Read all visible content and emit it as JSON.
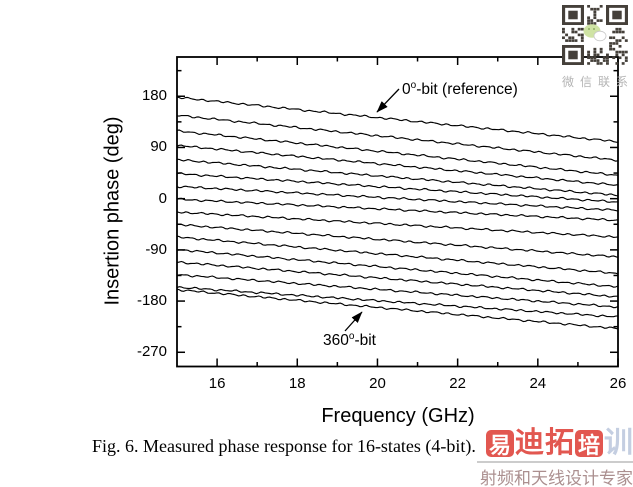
{
  "chart_data": {
    "type": "line",
    "title": "",
    "xlabel": "Frequency (GHz)",
    "ylabel": "Insertion phase (deg)",
    "xlim": [
      15,
      26
    ],
    "ylim": [
      -295,
      249
    ],
    "x_major_ticks": [
      16,
      18,
      20,
      22,
      24,
      26
    ],
    "x_minor_ticks": [
      17,
      19,
      21,
      23,
      25
    ],
    "y_major_ticks": [
      180,
      90,
      0,
      -90,
      -180,
      -270
    ],
    "y_minor_ticks": [
      225,
      135,
      45,
      -45,
      -135,
      -225
    ],
    "grid": false,
    "legend": "none",
    "line_color": "#000000",
    "series": [
      {
        "label": "0°-bit (reference)",
        "phase_15GHz": 178,
        "phase_26GHz": 100
      },
      {
        "phase_15GHz": 146.5,
        "phase_26GHz": 67.5
      },
      {
        "phase_15GHz": 119,
        "phase_26GHz": 41
      },
      {
        "phase_15GHz": 93.5,
        "phase_26GHz": 23.5
      },
      {
        "phase_15GHz": 68.5,
        "phase_26GHz": 6
      },
      {
        "phase_15GHz": 44,
        "phase_26GHz": -6
      },
      {
        "phase_15GHz": 21.5,
        "phase_26GHz": -20.5
      },
      {
        "phase_15GHz": -1,
        "phase_26GHz": -38
      },
      {
        "phase_15GHz": -23.5,
        "phase_26GHz": -67.5
      },
      {
        "phase_15GHz": -45.5,
        "phase_26GHz": -102.5
      },
      {
        "phase_15GHz": -67.5,
        "phase_26GHz": -131.5
      },
      {
        "phase_15GHz": -89.5,
        "phase_26GHz": -155
      },
      {
        "phase_15GHz": -111.5,
        "phase_26GHz": -172.5
      },
      {
        "phase_15GHz": -133.5,
        "phase_26GHz": -190.5
      },
      {
        "phase_15GHz": -155.5,
        "phase_26GHz": -208
      },
      {
        "label": "360°-bit",
        "phase_15GHz": -160,
        "phase_26GHz": -228.5
      }
    ],
    "annotations": [
      {
        "value": "0",
        "sup": "o",
        "rest": "-bit (reference)",
        "arrow_from": [
          399,
          89
        ],
        "arrow_to": [
          377,
          112
        ]
      },
      {
        "value": "360",
        "sup": "o",
        "rest": "-bit",
        "arrow_from": [
          345,
          331
        ],
        "arrow_to": [
          362,
          312
        ]
      }
    ]
  },
  "caption": "Fig. 6. Measured phase response for 16-states (4-bit).",
  "qr": {
    "label": "微信联系",
    "label_color": "#b4b4b4",
    "module_color": "#45403a"
  },
  "watermark": {
    "logo_chars": [
      "易",
      "迪",
      "拓",
      "培",
      "训"
    ],
    "subtitle": "射频和天线设计专家",
    "red": "#df4038",
    "train_color": "#bcc8de",
    "subtitle_color": "#ab8f8f"
  }
}
